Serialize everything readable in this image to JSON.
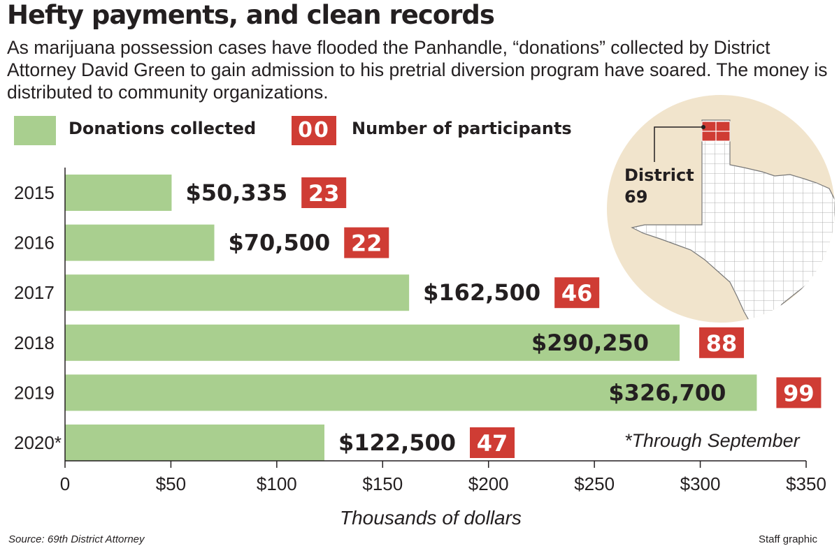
{
  "title": "Hefty payments, and clean records",
  "subtitle": "As marijuana possession cases have flooded the Panhandle, “donations” collected by District Attorney David Green to gain admission to his pretrial diversion program have soared. The money is distributed to community organizations.",
  "legend": {
    "donations_label": "Donations collected",
    "participants_badge": "00",
    "participants_label": "Number of participants"
  },
  "map": {
    "label_line1": "District",
    "label_line2": "69",
    "colors": {
      "background": "#f1e4cc",
      "state": "#ffffff",
      "district": "#cf3c34"
    }
  },
  "chart_data": {
    "type": "bar",
    "orientation": "horizontal",
    "categories": [
      "2015",
      "2016",
      "2017",
      "2018",
      "2019",
      "2020*"
    ],
    "series": [
      {
        "name": "Donations collected",
        "values": [
          50335,
          70500,
          162500,
          290250,
          326700,
          122500
        ]
      },
      {
        "name": "Number of participants",
        "values": [
          23,
          22,
          46,
          88,
          99,
          47
        ]
      }
    ],
    "value_labels": [
      "$50,335",
      "$70,500",
      "$162,500",
      "$290,250",
      "$326,700",
      "$122,500"
    ],
    "xlim": [
      0,
      350000
    ],
    "xticks": [
      0,
      50000,
      100000,
      150000,
      200000,
      250000,
      300000,
      350000
    ],
    "xtick_labels": [
      "0",
      "$50",
      "$100",
      "$150",
      "$200",
      "$250",
      "$300",
      "$350"
    ],
    "xlabel": "Thousands of dollars",
    "note": "*Through September",
    "grid": false,
    "colors": {
      "bar": "#a9cf8f",
      "badge": "#cf3c34",
      "axis": "#231f20"
    }
  },
  "footer": {
    "source": "Source: 69th District Attorney",
    "credit": "Staff graphic"
  }
}
